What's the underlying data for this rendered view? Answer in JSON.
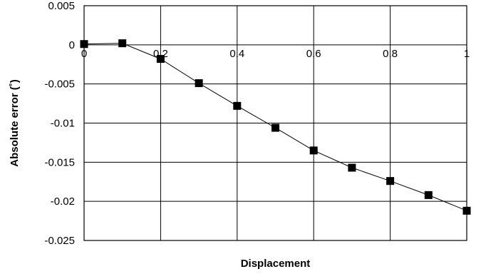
{
  "chart_data": {
    "type": "line",
    "title": "",
    "xlabel": "Displacement",
    "ylabel": "Absolute error (˚)",
    "xlim": [
      0,
      1
    ],
    "ylim": [
      -0.025,
      0.005
    ],
    "grid": true,
    "x_ticks": [
      "0",
      "0.2",
      "0.4",
      "0.6",
      "0.8",
      "1"
    ],
    "y_ticks": [
      "0.005",
      "0",
      "-0.005",
      "-0.01",
      "-0.015",
      "-0.02",
      "-0.025"
    ],
    "series": [
      {
        "marker": "square",
        "color": "#000000",
        "x": [
          0,
          0.1,
          0.2,
          0.3,
          0.4,
          0.5,
          0.6,
          0.7,
          0.8,
          0.9,
          1.0
        ],
        "y": [
          0.0001,
          0.0002,
          -0.0018,
          -0.0049,
          -0.0078,
          -0.0106,
          -0.0135,
          -0.0157,
          -0.0174,
          -0.0192,
          -0.0212
        ]
      }
    ]
  }
}
